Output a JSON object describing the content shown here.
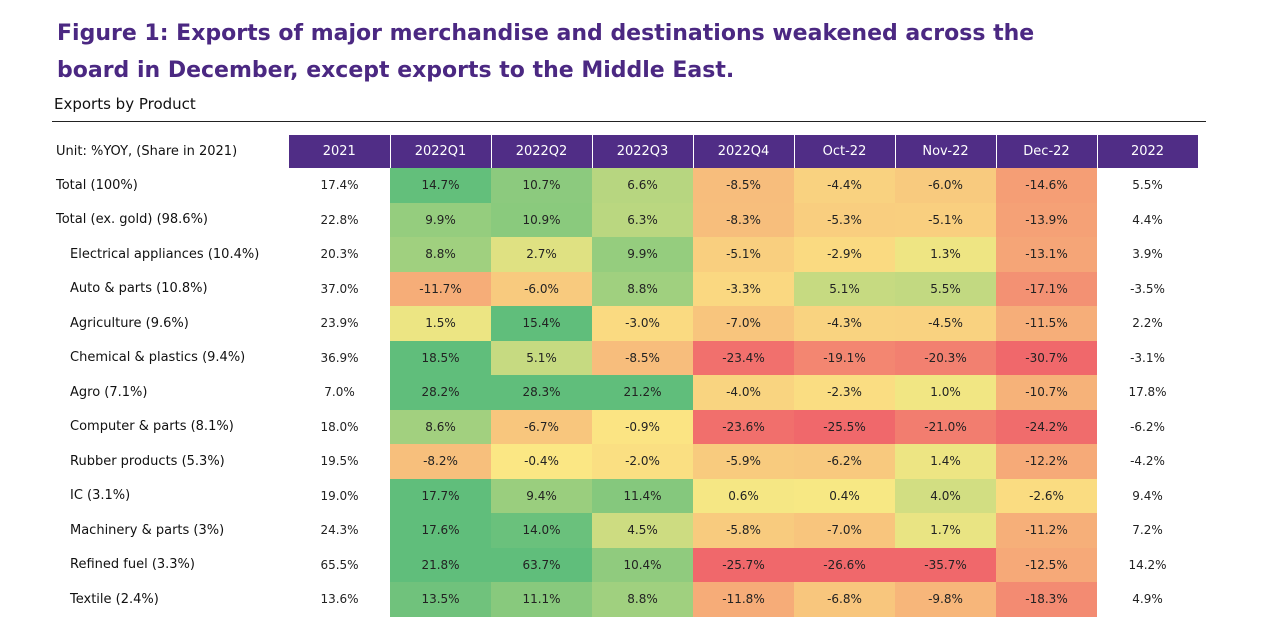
{
  "title": "Figure 1: Exports of major merchandise and destinations weakened across the board in December, except exports to the Middle East.",
  "subtitle": "Exports by Product",
  "chart_data": {
    "type": "table",
    "unit_label": "Unit: %YOY, (Share in 2021)",
    "columns": [
      "2021",
      "2022Q1",
      "2022Q2",
      "2022Q3",
      "2022Q4",
      "Oct-22",
      "Nov-22",
      "Dec-22",
      "2022"
    ],
    "heatmap_columns": [
      "2022Q1",
      "2022Q2",
      "2022Q3",
      "2022Q4",
      "Oct-22",
      "Nov-22",
      "Dec-22"
    ],
    "rows": [
      {
        "label": "Total (100%)",
        "indent": false,
        "values": [
          "17.4%",
          "14.7%",
          "10.7%",
          "6.6%",
          "-8.5%",
          "-4.4%",
          "-6.0%",
          "-14.6%",
          "5.5%"
        ]
      },
      {
        "label": "Total (ex. gold) (98.6%)",
        "indent": false,
        "values": [
          "22.8%",
          "9.9%",
          "10.9%",
          "6.3%",
          "-8.3%",
          "-5.3%",
          "-5.1%",
          "-13.9%",
          "4.4%"
        ]
      },
      {
        "label": "Electrical appliances (10.4%)",
        "indent": true,
        "values": [
          "20.3%",
          "8.8%",
          "2.7%",
          "9.9%",
          "-5.1%",
          "-2.9%",
          "1.3%",
          "-13.1%",
          "3.9%"
        ]
      },
      {
        "label": "Auto & parts (10.8%)",
        "indent": true,
        "values": [
          "37.0%",
          "-11.7%",
          "-6.0%",
          "8.8%",
          "-3.3%",
          "5.1%",
          "5.5%",
          "-17.1%",
          "-3.5%"
        ]
      },
      {
        "label": "Agriculture (9.6%)",
        "indent": true,
        "values": [
          "23.9%",
          "1.5%",
          "15.4%",
          "-3.0%",
          "-7.0%",
          "-4.3%",
          "-4.5%",
          "-11.5%",
          "2.2%"
        ]
      },
      {
        "label": "Chemical & plastics (9.4%)",
        "indent": true,
        "values": [
          "36.9%",
          "18.5%",
          "5.1%",
          "-8.5%",
          "-23.4%",
          "-19.1%",
          "-20.3%",
          "-30.7%",
          "-3.1%"
        ]
      },
      {
        "label": "Agro (7.1%)",
        "indent": true,
        "values": [
          "7.0%",
          "28.2%",
          "28.3%",
          "21.2%",
          "-4.0%",
          "-2.3%",
          "1.0%",
          "-10.7%",
          "17.8%"
        ]
      },
      {
        "label": "Computer & parts (8.1%)",
        "indent": true,
        "values": [
          "18.0%",
          "8.6%",
          "-6.7%",
          "-0.9%",
          "-23.6%",
          "-25.5%",
          "-21.0%",
          "-24.2%",
          "-6.2%"
        ]
      },
      {
        "label": "Rubber products (5.3%)",
        "indent": true,
        "values": [
          "19.5%",
          "-8.2%",
          "-0.4%",
          "-2.0%",
          "-5.9%",
          "-6.2%",
          "1.4%",
          "-12.2%",
          "-4.2%"
        ]
      },
      {
        "label": "IC (3.1%)",
        "indent": true,
        "values": [
          "19.0%",
          "17.7%",
          "9.4%",
          "11.4%",
          "0.6%",
          "0.4%",
          "4.0%",
          "-2.6%",
          "9.4%"
        ]
      },
      {
        "label": "Machinery & parts (3%)",
        "indent": true,
        "values": [
          "24.3%",
          "17.6%",
          "14.0%",
          "4.5%",
          "-5.8%",
          "-7.0%",
          "1.7%",
          "-11.2%",
          "7.2%"
        ]
      },
      {
        "label": "Refined fuel (3.3%)",
        "indent": true,
        "values": [
          "65.5%",
          "21.8%",
          "63.7%",
          "10.4%",
          "-25.7%",
          "-26.6%",
          "-35.7%",
          "-12.5%",
          "14.2%"
        ]
      },
      {
        "label": "Textile (2.4%)",
        "indent": true,
        "values": [
          "13.6%",
          "13.5%",
          "11.1%",
          "8.8%",
          "-11.8%",
          "-6.8%",
          "-9.8%",
          "-18.3%",
          "4.9%"
        ]
      }
    ]
  }
}
